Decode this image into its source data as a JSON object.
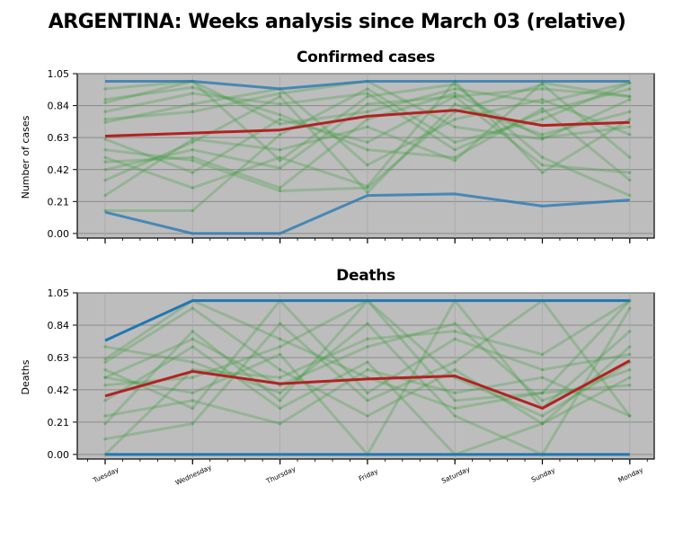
{
  "figure": {
    "title": "ARGENTINA: Weeks analysis since March 03 (relative)"
  },
  "colors": {
    "background": "#bdbdbd",
    "week_lines": "#3a9d3a",
    "mean_line": "#b22222",
    "bound_lines": "#1f77b4"
  },
  "chart_data": [
    {
      "type": "line",
      "title": "Confirmed cases",
      "ylabel": "Number of cases",
      "xlabel": "",
      "categories": [
        "Tuesday",
        "Wednesday",
        "Thursday",
        "Friday",
        "Saturday",
        "Sunday",
        "Monday"
      ],
      "yticks": [
        0.0,
        0.21,
        0.42,
        0.63,
        0.84,
        1.05
      ],
      "ylim": [
        -0.03,
        1.05
      ],
      "grid": true,
      "series": [
        {
          "role": "mean",
          "values": [
            0.64,
            0.66,
            0.68,
            0.77,
            0.81,
            0.71,
            0.73
          ]
        },
        {
          "role": "bound",
          "values": [
            1.0,
            1.0,
            0.95,
            1.0,
            1.0,
            1.0,
            1.0
          ]
        },
        {
          "role": "bound",
          "values": [
            0.14,
            0.0,
            0.0,
            0.25,
            0.26,
            0.18,
            0.22
          ]
        },
        {
          "role": "week",
          "values": [
            0.86,
            1.0,
            0.72,
            0.8,
            0.95,
            0.86,
            0.99
          ]
        },
        {
          "role": "week",
          "values": [
            0.75,
            0.8,
            0.92,
            1.0,
            0.7,
            0.62,
            0.88
          ]
        },
        {
          "role": "week",
          "values": [
            0.5,
            0.3,
            0.5,
            0.31,
            1.0,
            0.4,
            0.75
          ]
        },
        {
          "role": "week",
          "values": [
            0.42,
            0.55,
            0.43,
            0.85,
            0.9,
            0.95,
            0.9
          ]
        },
        {
          "role": "week",
          "values": [
            0.88,
            0.96,
            0.78,
            0.55,
            0.5,
            0.82,
            0.35
          ]
        },
        {
          "role": "week",
          "values": [
            0.15,
            0.15,
            0.65,
            0.95,
            0.6,
            0.75,
            0.99
          ]
        },
        {
          "role": "week",
          "values": [
            0.35,
            0.6,
            0.9,
            0.27,
            0.85,
            0.65,
            0.8
          ]
        },
        {
          "role": "week",
          "values": [
            0.55,
            0.48,
            0.28,
            0.3,
            0.8,
            0.98,
            0.5
          ]
        },
        {
          "role": "week",
          "values": [
            0.95,
            1.0,
            0.48,
            0.9,
            0.98,
            0.5,
            0.25
          ]
        },
        {
          "role": "week",
          "values": [
            0.73,
            0.85,
            0.95,
            0.45,
            0.75,
            0.88,
            0.65
          ]
        },
        {
          "role": "week",
          "values": [
            0.25,
            0.62,
            0.55,
            0.7,
            0.48,
            0.99,
            0.9
          ]
        },
        {
          "role": "week",
          "values": [
            0.62,
            0.4,
            0.75,
            0.6,
            0.9,
            0.45,
            0.4
          ]
        },
        {
          "role": "week",
          "values": [
            0.8,
            0.92,
            0.85,
            0.92,
            0.55,
            0.8,
            0.95
          ]
        },
        {
          "role": "week",
          "values": [
            0.47,
            0.5,
            0.3,
            0.75,
            0.92,
            0.63,
            0.7
          ]
        }
      ]
    },
    {
      "type": "line",
      "title": "Deaths",
      "ylabel": "Deaths",
      "xlabel": "",
      "categories": [
        "Tuesday",
        "Wednesday",
        "Thursday",
        "Friday",
        "Saturday",
        "Sunday",
        "Monday"
      ],
      "yticks": [
        0.0,
        0.21,
        0.42,
        0.63,
        0.84,
        1.05
      ],
      "ylim": [
        -0.03,
        1.05
      ],
      "grid": true,
      "series": [
        {
          "role": "mean",
          "values": [
            0.38,
            0.54,
            0.46,
            0.49,
            0.51,
            0.3,
            0.61
          ]
        },
        {
          "role": "bound",
          "values": [
            0.74,
            1.0,
            1.0,
            1.0,
            1.0,
            1.0,
            1.0
          ]
        },
        {
          "role": "bound",
          "values": [
            0.0,
            0.0,
            0.0,
            0.0,
            0.0,
            0.0,
            0.0
          ]
        },
        {
          "role": "week",
          "values": [
            0.62,
            1.0,
            0.75,
            0.5,
            0.3,
            0.4,
            1.0
          ]
        },
        {
          "role": "week",
          "values": [
            0.55,
            0.3,
            1.0,
            0.4,
            0.75,
            0.55,
            0.65
          ]
        },
        {
          "role": "week",
          "values": [
            0.2,
            0.8,
            0.35,
            1.0,
            0.5,
            0.25,
            0.6
          ]
        },
        {
          "role": "week",
          "values": [
            0.0,
            0.55,
            0.5,
            0.75,
            0.8,
            0.65,
            1.0
          ]
        },
        {
          "role": "week",
          "values": [
            0.5,
            0.4,
            0.65,
            0.0,
            1.0,
            0.3,
            0.8
          ]
        },
        {
          "role": "week",
          "values": [
            0.35,
            0.7,
            0.3,
            0.6,
            0.0,
            0.2,
            0.5
          ]
        },
        {
          "role": "week",
          "values": [
            0.1,
            0.2,
            0.85,
            0.35,
            0.6,
            1.0,
            0.25
          ]
        },
        {
          "role": "week",
          "values": [
            0.7,
            0.6,
            0.4,
            0.85,
            0.25,
            0.0,
            0.95
          ]
        },
        {
          "role": "week",
          "values": [
            0.45,
            0.5,
            0.7,
            1.0,
            0.35,
            0.4,
            0.45
          ]
        },
        {
          "role": "week",
          "values": [
            0.6,
            0.95,
            0.55,
            0.25,
            0.55,
            0.2,
            0.7
          ]
        },
        {
          "role": "week",
          "values": [
            0.25,
            0.35,
            0.2,
            0.55,
            0.4,
            0.5,
            0.25
          ]
        },
        {
          "role": "week",
          "values": [
            0.5,
            0.75,
            0.45,
            0.7,
            0.85,
            0.35,
            0.55
          ]
        }
      ]
    }
  ]
}
